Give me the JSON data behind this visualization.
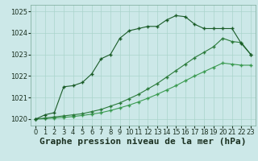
{
  "xlabel": "Graphe pression niveau de la mer (hPa)",
  "bg_color": "#cce8e8",
  "grid_color": "#aad4cc",
  "line_color_dark": "#1a5c28",
  "line_color_mid": "#2a7a3a",
  "line_color_light": "#3a9a50",
  "xlim": [
    -0.5,
    23.5
  ],
  "ylim": [
    1019.7,
    1025.3
  ],
  "yticks": [
    1020,
    1021,
    1022,
    1023,
    1024,
    1025
  ],
  "xticks": [
    0,
    1,
    2,
    3,
    4,
    5,
    6,
    7,
    8,
    9,
    10,
    11,
    12,
    13,
    14,
    15,
    16,
    17,
    18,
    19,
    20,
    21,
    22,
    23
  ],
  "series1_x": [
    0,
    1,
    2,
    3,
    4,
    5,
    6,
    7,
    8,
    9,
    10,
    11,
    12,
    13,
    14,
    15,
    16,
    17,
    18,
    19,
    20,
    21,
    22,
    23
  ],
  "series1_y": [
    1020.0,
    1020.2,
    1020.3,
    1021.5,
    1021.55,
    1021.7,
    1022.1,
    1022.8,
    1023.0,
    1023.75,
    1024.1,
    1024.2,
    1024.3,
    1024.3,
    1024.6,
    1024.8,
    1024.75,
    1024.4,
    1024.2,
    1024.2,
    1024.2,
    1024.2,
    1023.5,
    1023.0
  ],
  "series2_x": [
    0,
    1,
    2,
    3,
    4,
    5,
    6,
    7,
    8,
    9,
    10,
    11,
    12,
    13,
    14,
    15,
    16,
    17,
    18,
    19,
    20,
    21,
    22,
    23
  ],
  "series2_y": [
    1020.0,
    1020.05,
    1020.1,
    1020.15,
    1020.2,
    1020.25,
    1020.35,
    1020.45,
    1020.6,
    1020.75,
    1020.95,
    1021.15,
    1021.4,
    1021.65,
    1021.95,
    1022.25,
    1022.55,
    1022.85,
    1023.1,
    1023.35,
    1023.75,
    1023.6,
    1023.55,
    1023.0
  ],
  "series3_x": [
    0,
    1,
    2,
    3,
    4,
    5,
    6,
    7,
    8,
    9,
    10,
    11,
    12,
    13,
    14,
    15,
    16,
    17,
    18,
    19,
    20,
    21,
    22,
    23
  ],
  "series3_y": [
    1020.0,
    1020.02,
    1020.05,
    1020.08,
    1020.12,
    1020.17,
    1020.23,
    1020.3,
    1020.4,
    1020.52,
    1020.65,
    1020.8,
    1020.97,
    1021.15,
    1021.35,
    1021.55,
    1021.78,
    1022.0,
    1022.2,
    1022.4,
    1022.6,
    1022.55,
    1022.5,
    1022.5
  ],
  "marker": "+",
  "marker_size": 3.5,
  "linewidth": 0.8,
  "xlabel_fontsize": 8,
  "tick_fontsize": 6
}
